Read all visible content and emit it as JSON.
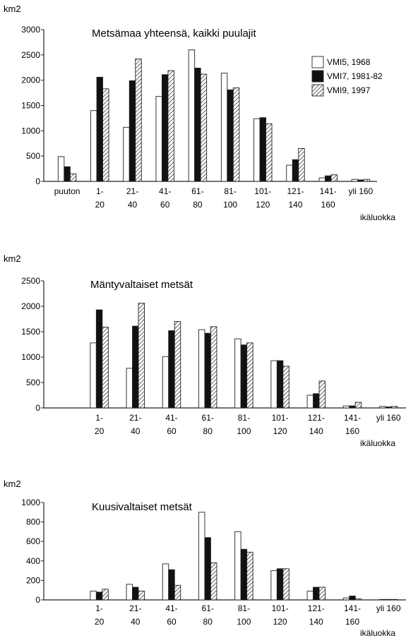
{
  "chart_data": [
    {
      "type": "bar",
      "title": "Metsämaa yhteensä,  kaikki puulajit",
      "ylabel": "km2",
      "xlabel": "ikäluokka",
      "ylim": [
        0,
        3000
      ],
      "yticks": [
        "0",
        "500",
        "1000",
        "1500",
        "2000",
        "2500",
        "3000"
      ],
      "categories": [
        [
          "puuton"
        ],
        [
          "1-",
          "20"
        ],
        [
          "21-",
          "40"
        ],
        [
          "41-",
          "60"
        ],
        [
          "61-",
          "80"
        ],
        [
          "81-",
          "100"
        ],
        [
          "101-",
          "120"
        ],
        [
          "121-",
          "140"
        ],
        [
          "141-",
          "160"
        ],
        [
          "yli 160"
        ]
      ],
      "legend": true,
      "legend_placement": "top-right",
      "series": [
        {
          "name": "VMI5, 1968",
          "style": "white",
          "values": [
            490,
            1400,
            1070,
            1680,
            2600,
            2140,
            1240,
            320,
            70,
            40
          ]
        },
        {
          "name": "VMI7, 1981-82",
          "style": "black",
          "values": [
            290,
            2060,
            1990,
            2110,
            2240,
            1810,
            1260,
            430,
            110,
            30
          ]
        },
        {
          "name": "VMI9, 1997",
          "style": "hatch",
          "values": [
            150,
            1830,
            2420,
            2190,
            2120,
            1850,
            1140,
            650,
            130,
            40
          ]
        }
      ]
    },
    {
      "type": "bar",
      "title": "Mäntyvaltaiset metsät",
      "ylabel": "km2",
      "xlabel": "ikäluokka",
      "ylim": [
        0,
        2500
      ],
      "yticks": [
        "0",
        "500",
        "1000",
        "1500",
        "2000",
        "2500"
      ],
      "categories": [
        [
          "1-",
          "20"
        ],
        [
          "21-",
          "40"
        ],
        [
          "41-",
          "60"
        ],
        [
          "61-",
          "80"
        ],
        [
          "81-",
          "100"
        ],
        [
          "101-",
          "120"
        ],
        [
          "121-",
          "140"
        ],
        [
          "141-",
          "160"
        ],
        [
          "yli 160"
        ]
      ],
      "legend": false,
      "series": [
        {
          "style": "white",
          "values": [
            1280,
            780,
            1010,
            1540,
            1360,
            930,
            250,
            40,
            30
          ]
        },
        {
          "style": "black",
          "values": [
            1930,
            1610,
            1520,
            1470,
            1240,
            930,
            280,
            40,
            20
          ]
        },
        {
          "style": "hatch",
          "values": [
            1590,
            2060,
            1700,
            1600,
            1280,
            820,
            530,
            110,
            30
          ]
        }
      ]
    },
    {
      "type": "bar",
      "title": "Kuusivaltaiset metsät",
      "ylabel": "km2",
      "xlabel": "ikäluokka",
      "ylim": [
        0,
        1000
      ],
      "yticks": [
        "0",
        "200",
        "400",
        "600",
        "800",
        "1000"
      ],
      "categories": [
        [
          "1-",
          "20"
        ],
        [
          "21-",
          "40"
        ],
        [
          "41-",
          "60"
        ],
        [
          "61-",
          "80"
        ],
        [
          "81-",
          "100"
        ],
        [
          "101-",
          "120"
        ],
        [
          "121-",
          "140"
        ],
        [
          "141-",
          "160"
        ],
        [
          "yli 160"
        ]
      ],
      "legend": false,
      "series": [
        {
          "style": "white",
          "values": [
            90,
            160,
            370,
            900,
            700,
            300,
            90,
            20,
            5
          ]
        },
        {
          "style": "black",
          "values": [
            80,
            130,
            310,
            640,
            520,
            320,
            130,
            40,
            5
          ]
        },
        {
          "style": "hatch",
          "values": [
            110,
            90,
            150,
            380,
            490,
            320,
            130,
            10,
            5
          ]
        }
      ]
    }
  ]
}
